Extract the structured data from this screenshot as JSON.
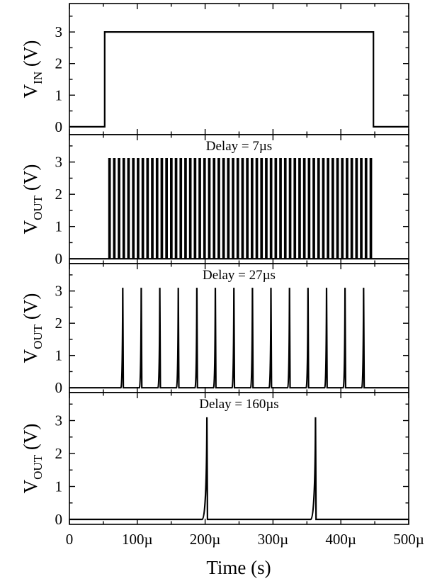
{
  "figure": {
    "xlabel": "Time (s)",
    "x_tick_labels": [
      "0",
      "100µ",
      "200µ",
      "300µ",
      "400µ",
      "500µ"
    ]
  },
  "chart_data": [
    {
      "type": "line",
      "panel": "input",
      "ylabel_main": "V",
      "ylabel_sub": "IN",
      "ylabel_unit": "(V)",
      "annotation": "",
      "y_ticks": [
        0,
        1,
        2,
        3
      ],
      "ylim": [
        -0.25,
        3.9
      ],
      "xlim": [
        0,
        500
      ],
      "x_unit": "µs",
      "x": [
        0,
        52,
        52,
        448,
        448,
        500
      ],
      "y": [
        0,
        0,
        3,
        3,
        0,
        0
      ]
    },
    {
      "type": "line",
      "panel": "output-delay-7us",
      "ylabel_main": "V",
      "ylabel_sub": "OUT",
      "ylabel_unit": "(V)",
      "annotation": "Delay = 7µs",
      "y_ticks": [
        0,
        1,
        2,
        3
      ],
      "ylim": [
        -0.15,
        3.85
      ],
      "xlim": [
        0,
        500
      ],
      "x_unit": "µs",
      "pulse_train": {
        "start": 59,
        "period": 7,
        "stop": 448,
        "peak": 3.1,
        "shape": "rectangular"
      }
    },
    {
      "type": "line",
      "panel": "output-delay-27us",
      "ylabel_main": "V",
      "ylabel_sub": "OUT",
      "ylabel_unit": "(V)",
      "annotation": "Delay = 27µs",
      "y_ticks": [
        0,
        1,
        2,
        3
      ],
      "ylim": [
        -0.15,
        3.85
      ],
      "xlim": [
        0,
        500
      ],
      "x_unit": "µs",
      "pulse_train": {
        "start": 79,
        "period": 27.3,
        "stop": 448,
        "peak": 3.1,
        "shape": "spike"
      }
    },
    {
      "type": "line",
      "panel": "output-delay-160us",
      "ylabel_main": "V",
      "ylabel_sub": "OUT",
      "ylabel_unit": "(V)",
      "annotation": "Delay = 160µs",
      "y_ticks": [
        0,
        1,
        2,
        3
      ],
      "ylim": [
        -0.15,
        3.85
      ],
      "xlim": [
        0,
        500
      ],
      "x_unit": "µs",
      "pulse_train": {
        "start": 203,
        "period": 160,
        "stop": 448,
        "peak": 3.1,
        "shape": "spike"
      }
    }
  ]
}
